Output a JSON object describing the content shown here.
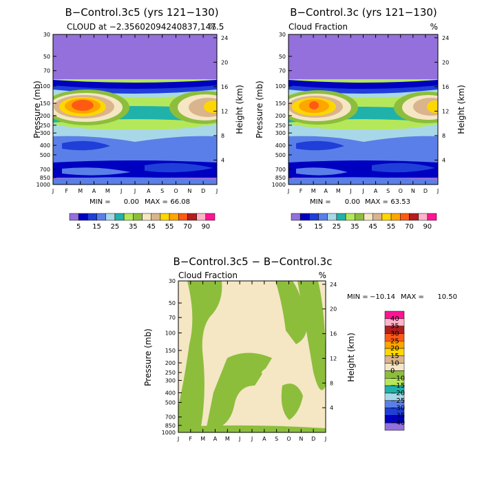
{
  "chart_data": [
    {
      "type": "contour",
      "title": "B−Control.3c5 (yrs 121−130)",
      "left_label": "CLOUD at −2.35602094240837,147.5",
      "right_label": "%",
      "xlabel": "",
      "ylabel": "Pressure (mb)",
      "ylabel_right": "Height (km)",
      "x_ticks": [
        "J",
        "F",
        "M",
        "A",
        "M",
        "J",
        "J",
        "A",
        "S",
        "O",
        "N",
        "D",
        "J"
      ],
      "y_ticks_left": [
        "30",
        "50",
        "70",
        "100",
        "150",
        "200",
        "250",
        "300",
        "400",
        "500",
        "700",
        "850",
        "1000"
      ],
      "y_ticks_right": [
        "24",
        "20",
        "16",
        "12",
        "8",
        "4"
      ],
      "stats": {
        "min_label": "MIN =",
        "min": "0.00",
        "max_label": "MAX =",
        "max": "66.08"
      },
      "colorbar": {
        "orientation": "horizontal",
        "labels": [
          "5",
          "15",
          "25",
          "35",
          "45",
          "55",
          "70",
          "90"
        ]
      }
    },
    {
      "type": "contour",
      "title": "B−Control.3c (yrs 121−130)",
      "left_label": "Cloud Fraction",
      "right_label": "%",
      "xlabel": "",
      "ylabel": "Pressure (mb)",
      "ylabel_right": "Height (km)",
      "x_ticks": [
        "J",
        "F",
        "M",
        "A",
        "M",
        "J",
        "J",
        "A",
        "S",
        "O",
        "N",
        "D",
        "J"
      ],
      "y_ticks_left": [
        "30",
        "50",
        "70",
        "100",
        "150",
        "200",
        "250",
        "300",
        "400",
        "500",
        "700",
        "850",
        "1000"
      ],
      "y_ticks_right": [
        "24",
        "20",
        "16",
        "12",
        "8",
        "4"
      ],
      "stats": {
        "min_label": "MIN =",
        "min": "0.00",
        "max_label": "MAX =",
        "max": "63.53"
      },
      "colorbar": {
        "orientation": "horizontal",
        "labels": [
          "5",
          "15",
          "25",
          "35",
          "45",
          "55",
          "70",
          "90"
        ]
      }
    },
    {
      "type": "contour",
      "title": "B−Control.3c5 − B−Control.3c",
      "left_label": "Cloud Fraction",
      "right_label": "%",
      "xlabel": "",
      "ylabel": "Pressure (mb)",
      "ylabel_right": "Height (km)",
      "x_ticks": [
        "J",
        "F",
        "M",
        "A",
        "M",
        "J",
        "J",
        "A",
        "S",
        "O",
        "N",
        "D",
        "J"
      ],
      "y_ticks_left": [
        "30",
        "50",
        "70",
        "100",
        "150",
        "200",
        "250",
        "300",
        "400",
        "500",
        "700",
        "850",
        "1000"
      ],
      "y_ticks_right": [
        "24",
        "20",
        "16",
        "12",
        "8",
        "4"
      ],
      "stats": {
        "min_label": "MIN =",
        "min": "−10.14",
        "max_label": "MAX =",
        "max": "10.50"
      },
      "colorbar": {
        "orientation": "vertical",
        "labels": [
          "40",
          "35",
          "30",
          "25",
          "20",
          "15",
          "10",
          "0",
          "−10",
          "−15",
          "−20",
          "−25",
          "−30",
          "−35",
          "−40"
        ]
      }
    }
  ],
  "colors": {
    "purple": "#9370db",
    "navy": "#0000c0",
    "blue": "#1f3fd8",
    "mid_blue": "#5a7fe8",
    "light_blue": "#a8d8e8",
    "teal": "#20b2aa",
    "lime": "#b4e85a",
    "olive_green": "#8cbe3c",
    "beige": "#f5e6c4",
    "tan": "#d9b48c",
    "yellow": "#ffd700",
    "orange": "#ffa500",
    "orange_red": "#ff5a14",
    "dark_red": "#b41e1e",
    "pink": "#ffb4c8",
    "magenta": "#ff1493"
  }
}
